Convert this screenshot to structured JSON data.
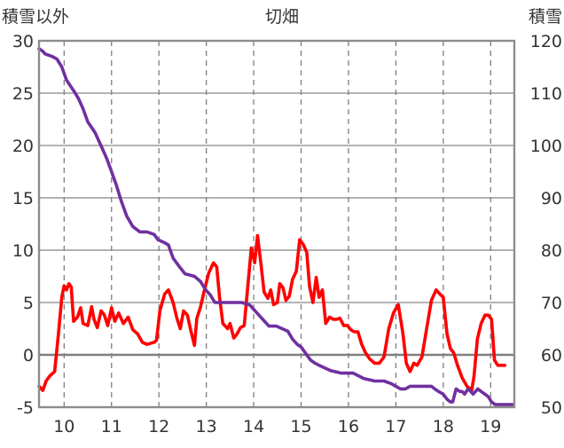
{
  "chart_data": {
    "type": "line",
    "title": "切畑",
    "ylabel_left": "積雪以外",
    "ylabel_right": "積雪",
    "x_tick_labels": [
      "10",
      "11",
      "12",
      "13",
      "14",
      "15",
      "16",
      "17",
      "18",
      "19"
    ],
    "x_ticks": [
      10,
      11,
      12,
      13,
      14,
      15,
      16,
      17,
      18,
      19
    ],
    "xlim": [
      9.47,
      19.5
    ],
    "y_left": {
      "lim": [
        -5,
        30
      ],
      "ticks": [
        -5,
        0,
        5,
        10,
        15,
        20,
        25,
        30
      ]
    },
    "y_right": {
      "lim": [
        50,
        120
      ],
      "ticks": [
        50,
        60,
        70,
        80,
        90,
        100,
        110,
        120
      ]
    },
    "grid": {
      "vertical": "dashed",
      "horizontal": "solid"
    },
    "series": [
      {
        "axis": "left",
        "color": "#ff0000",
        "points": [
          [
            9.47,
            -3.0
          ],
          [
            9.55,
            -3.4
          ],
          [
            9.62,
            -2.5
          ],
          [
            9.7,
            -2.0
          ],
          [
            9.8,
            -1.6
          ],
          [
            9.88,
            2.0
          ],
          [
            9.95,
            5.5
          ],
          [
            10.0,
            6.6
          ],
          [
            10.05,
            6.2
          ],
          [
            10.1,
            6.8
          ],
          [
            10.15,
            6.5
          ],
          [
            10.2,
            3.2
          ],
          [
            10.28,
            3.6
          ],
          [
            10.35,
            4.5
          ],
          [
            10.4,
            3.0
          ],
          [
            10.5,
            2.8
          ],
          [
            10.58,
            4.6
          ],
          [
            10.63,
            3.4
          ],
          [
            10.7,
            2.6
          ],
          [
            10.78,
            4.2
          ],
          [
            10.85,
            3.8
          ],
          [
            10.92,
            2.8
          ],
          [
            11.0,
            4.5
          ],
          [
            11.07,
            3.2
          ],
          [
            11.15,
            4.0
          ],
          [
            11.25,
            3.0
          ],
          [
            11.35,
            3.6
          ],
          [
            11.45,
            2.4
          ],
          [
            11.55,
            2.0
          ],
          [
            11.65,
            1.2
          ],
          [
            11.75,
            1.0
          ],
          [
            11.9,
            1.2
          ],
          [
            11.95,
            1.4
          ],
          [
            12.02,
            4.2
          ],
          [
            12.12,
            5.8
          ],
          [
            12.2,
            6.2
          ],
          [
            12.3,
            5.0
          ],
          [
            12.38,
            3.5
          ],
          [
            12.45,
            2.5
          ],
          [
            12.52,
            4.2
          ],
          [
            12.6,
            3.8
          ],
          [
            12.68,
            2.2
          ],
          [
            12.75,
            0.9
          ],
          [
            12.8,
            3.5
          ],
          [
            12.88,
            4.6
          ],
          [
            12.95,
            6.0
          ],
          [
            13.05,
            7.8
          ],
          [
            13.15,
            8.8
          ],
          [
            13.22,
            8.4
          ],
          [
            13.28,
            5.5
          ],
          [
            13.35,
            3.0
          ],
          [
            13.45,
            2.5
          ],
          [
            13.5,
            3.0
          ],
          [
            13.58,
            1.6
          ],
          [
            13.65,
            2.0
          ],
          [
            13.72,
            2.6
          ],
          [
            13.8,
            2.8
          ],
          [
            13.88,
            6.8
          ],
          [
            13.95,
            10.2
          ],
          [
            14.02,
            8.8
          ],
          [
            14.08,
            11.4
          ],
          [
            14.15,
            8.8
          ],
          [
            14.22,
            6.0
          ],
          [
            14.3,
            5.4
          ],
          [
            14.36,
            6.2
          ],
          [
            14.42,
            4.8
          ],
          [
            14.5,
            5.0
          ],
          [
            14.55,
            6.8
          ],
          [
            14.62,
            6.4
          ],
          [
            14.68,
            5.2
          ],
          [
            14.75,
            5.6
          ],
          [
            14.82,
            7.2
          ],
          [
            14.9,
            8.0
          ],
          [
            14.97,
            11.0
          ],
          [
            15.05,
            10.5
          ],
          [
            15.12,
            9.8
          ],
          [
            15.18,
            6.5
          ],
          [
            15.25,
            5.0
          ],
          [
            15.32,
            7.4
          ],
          [
            15.38,
            5.5
          ],
          [
            15.45,
            6.2
          ],
          [
            15.52,
            3.0
          ],
          [
            15.6,
            3.6
          ],
          [
            15.68,
            3.4
          ],
          [
            15.75,
            3.4
          ],
          [
            15.82,
            3.5
          ],
          [
            15.9,
            2.8
          ],
          [
            15.98,
            2.8
          ],
          [
            16.05,
            2.4
          ],
          [
            16.12,
            2.2
          ],
          [
            16.2,
            2.2
          ],
          [
            16.28,
            1.0
          ],
          [
            16.36,
            0.2
          ],
          [
            16.45,
            -0.4
          ],
          [
            16.55,
            -0.8
          ],
          [
            16.65,
            -0.8
          ],
          [
            16.75,
            -0.2
          ],
          [
            16.85,
            2.5
          ],
          [
            16.95,
            4.0
          ],
          [
            17.05,
            4.8
          ],
          [
            17.15,
            2.0
          ],
          [
            17.22,
            -0.8
          ],
          [
            17.3,
            -1.6
          ],
          [
            17.38,
            -0.8
          ],
          [
            17.45,
            -1.0
          ],
          [
            17.55,
            -0.2
          ],
          [
            17.65,
            2.5
          ],
          [
            17.75,
            5.2
          ],
          [
            17.85,
            6.2
          ],
          [
            17.93,
            5.8
          ],
          [
            18.0,
            5.5
          ],
          [
            18.08,
            2.0
          ],
          [
            18.15,
            0.6
          ],
          [
            18.22,
            0.2
          ],
          [
            18.3,
            -1.0
          ],
          [
            18.4,
            -2.2
          ],
          [
            18.5,
            -3.0
          ],
          [
            18.6,
            -3.4
          ],
          [
            18.65,
            -2.0
          ],
          [
            18.72,
            1.5
          ],
          [
            18.8,
            3.0
          ],
          [
            18.88,
            3.8
          ],
          [
            18.95,
            3.8
          ],
          [
            19.02,
            3.4
          ],
          [
            19.08,
            -0.5
          ],
          [
            19.15,
            -1.0
          ],
          [
            19.3,
            -1.0
          ]
        ]
      },
      {
        "axis": "right",
        "color": "#7030a0",
        "points": [
          [
            9.47,
            118.5
          ],
          [
            9.55,
            118.0
          ],
          [
            9.6,
            117.5
          ],
          [
            9.75,
            117.0
          ],
          [
            9.85,
            116.5
          ],
          [
            9.95,
            115.0
          ],
          [
            10.05,
            112.5
          ],
          [
            10.2,
            110.5
          ],
          [
            10.3,
            109.0
          ],
          [
            10.4,
            107.0
          ],
          [
            10.5,
            104.5
          ],
          [
            10.65,
            102.5
          ],
          [
            10.8,
            99.5
          ],
          [
            10.9,
            97.5
          ],
          [
            11.0,
            95.0
          ],
          [
            11.1,
            92.5
          ],
          [
            11.2,
            89.5
          ],
          [
            11.32,
            86.5
          ],
          [
            11.45,
            84.5
          ],
          [
            11.6,
            83.5
          ],
          [
            11.75,
            83.5
          ],
          [
            11.9,
            83.0
          ],
          [
            11.98,
            82.0
          ],
          [
            12.1,
            81.5
          ],
          [
            12.2,
            81.0
          ],
          [
            12.3,
            78.5
          ],
          [
            12.42,
            77.0
          ],
          [
            12.55,
            75.5
          ],
          [
            12.75,
            75.0
          ],
          [
            12.88,
            74.0
          ],
          [
            12.98,
            72.5
          ],
          [
            13.08,
            71.5
          ],
          [
            13.18,
            70.0
          ],
          [
            13.35,
            70.0
          ],
          [
            13.55,
            70.0
          ],
          [
            13.75,
            70.0
          ],
          [
            13.92,
            69.5
          ],
          [
            14.02,
            68.5
          ],
          [
            14.12,
            67.5
          ],
          [
            14.22,
            66.5
          ],
          [
            14.32,
            65.5
          ],
          [
            14.48,
            65.5
          ],
          [
            14.6,
            65.0
          ],
          [
            14.72,
            64.5
          ],
          [
            14.82,
            63.0
          ],
          [
            14.92,
            62.0
          ],
          [
            15.0,
            61.5
          ],
          [
            15.08,
            60.5
          ],
          [
            15.2,
            59.0
          ],
          [
            15.28,
            58.5
          ],
          [
            15.38,
            58.0
          ],
          [
            15.5,
            57.5
          ],
          [
            15.62,
            57.0
          ],
          [
            15.85,
            56.5
          ],
          [
            16.1,
            56.5
          ],
          [
            16.32,
            55.5
          ],
          [
            16.55,
            55.0
          ],
          [
            16.75,
            55.0
          ],
          [
            16.9,
            54.5
          ],
          [
            17.0,
            54.0
          ],
          [
            17.1,
            53.5
          ],
          [
            17.2,
            53.5
          ],
          [
            17.3,
            54.0
          ],
          [
            17.55,
            54.0
          ],
          [
            17.75,
            54.0
          ],
          [
            17.82,
            53.5
          ],
          [
            17.9,
            53.0
          ],
          [
            18.0,
            52.5
          ],
          [
            18.08,
            51.5
          ],
          [
            18.15,
            51.0
          ],
          [
            18.2,
            51.0
          ],
          [
            18.27,
            53.5
          ],
          [
            18.35,
            53.0
          ],
          [
            18.4,
            53.0
          ],
          [
            18.45,
            52.5
          ],
          [
            18.52,
            53.5
          ],
          [
            18.58,
            53.0
          ],
          [
            18.63,
            52.5
          ],
          [
            18.68,
            53.0
          ],
          [
            18.73,
            53.5
          ],
          [
            18.8,
            53.0
          ],
          [
            18.88,
            52.5
          ],
          [
            18.95,
            52.0
          ],
          [
            19.02,
            51.0
          ],
          [
            19.1,
            50.5
          ],
          [
            19.3,
            50.5
          ],
          [
            19.47,
            50.5
          ]
        ]
      }
    ]
  }
}
